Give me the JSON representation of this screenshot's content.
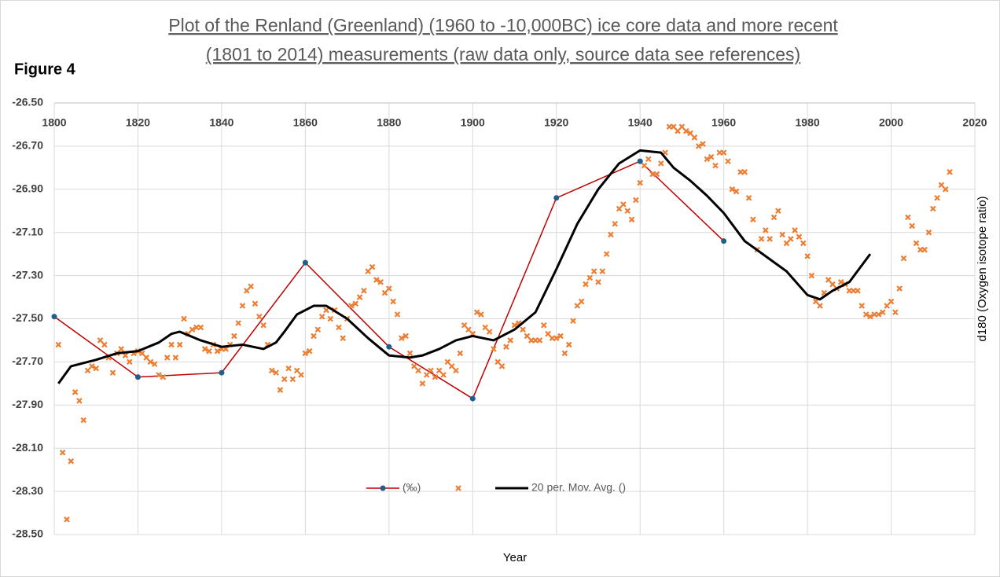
{
  "figure_label": "Figure 4",
  "chart_data": {
    "type": "line",
    "title": [
      "Plot of  the Renland (Greenland) (1960 to -10,000BC) ice core data and more recent",
      "(1801 to 2014) measurements  (raw data only, source data see references)"
    ],
    "xlabel": "Year",
    "ylabel": "d180 (Oxygen isotope ratio)",
    "xlim": [
      1800,
      2020
    ],
    "xticks": [
      1800,
      1820,
      1840,
      1860,
      1880,
      1900,
      1920,
      1940,
      1960,
      1980,
      2000,
      2020
    ],
    "ylim": [
      -28.5,
      -26.5
    ],
    "yticks": [
      {
        "value": -26.5,
        "label": "-26.50"
      },
      {
        "value": -26.7,
        "label": "-26.70"
      },
      {
        "value": -26.9,
        "label": "-26.90"
      },
      {
        "value": -27.1,
        "label": "-27.10"
      },
      {
        "value": -27.3,
        "label": "-27.30"
      },
      {
        "value": -27.5,
        "label": "-27.50"
      },
      {
        "value": -27.7,
        "label": "-27.70"
      },
      {
        "value": -27.9,
        "label": "-27.90"
      },
      {
        "value": -28.1,
        "label": "-28.10"
      },
      {
        "value": -28.3,
        "label": "-28.30"
      },
      {
        "value": -28.5,
        "label": "-28.50"
      }
    ],
    "grid": true,
    "legend": "bottom",
    "series": [
      {
        "name": "(‰)",
        "type": "line",
        "color": "#c00000",
        "marker_color": "#1f5f8b",
        "x": [
          1800,
          1820,
          1840,
          1860,
          1880,
          1900,
          1920,
          1940,
          1960
        ],
        "values": [
          -27.49,
          -27.77,
          -27.75,
          -27.24,
          -27.63,
          -27.87,
          -26.94,
          -26.77,
          -27.14
        ]
      },
      {
        "type": "scatter",
        "color": "#ed7d31",
        "x": [
          1801,
          1802,
          1803,
          1804,
          1805,
          1806,
          1807,
          1808,
          1809,
          1810,
          1811,
          1812,
          1813,
          1814,
          1815,
          1816,
          1817,
          1818,
          1819,
          1820,
          1821,
          1822,
          1823,
          1824,
          1825,
          1826,
          1827,
          1828,
          1829,
          1830,
          1831,
          1832,
          1833,
          1834,
          1835,
          1836,
          1837,
          1838,
          1839,
          1840,
          1841,
          1842,
          1843,
          1844,
          1845,
          1846,
          1847,
          1848,
          1849,
          1850,
          1851,
          1852,
          1853,
          1854,
          1855,
          1856,
          1857,
          1858,
          1859,
          1860,
          1861,
          1862,
          1863,
          1864,
          1865,
          1866,
          1867,
          1868,
          1869,
          1870,
          1871,
          1872,
          1873,
          1874,
          1875,
          1876,
          1877,
          1878,
          1879,
          1880,
          1881,
          1882,
          1883,
          1884,
          1885,
          1886,
          1887,
          1888,
          1889,
          1890,
          1891,
          1892,
          1893,
          1894,
          1895,
          1896,
          1897,
          1898,
          1899,
          1900,
          1901,
          1902,
          1903,
          1904,
          1905,
          1906,
          1907,
          1908,
          1909,
          1910,
          1911,
          1912,
          1913,
          1914,
          1915,
          1916,
          1917,
          1918,
          1919,
          1920,
          1921,
          1922,
          1923,
          1924,
          1925,
          1926,
          1927,
          1928,
          1929,
          1930,
          1931,
          1932,
          1933,
          1934,
          1935,
          1936,
          1937,
          1938,
          1939,
          1940,
          1941,
          1942,
          1943,
          1944,
          1945,
          1946,
          1947,
          1948,
          1949,
          1950,
          1951,
          1952,
          1953,
          1954,
          1955,
          1956,
          1957,
          1958,
          1959,
          1960,
          1961,
          1962,
          1963,
          1964,
          1965,
          1966,
          1967,
          1968,
          1969,
          1970,
          1971,
          1972,
          1973,
          1974,
          1975,
          1976,
          1977,
          1978,
          1979,
          1980,
          1981,
          1982,
          1983,
          1984,
          1985,
          1986,
          1987,
          1988,
          1989,
          1990,
          1991,
          1992,
          1993,
          1994,
          1995,
          1996,
          1997,
          1998,
          1999,
          2000,
          2001,
          2002,
          2003,
          2004,
          2005,
          2006,
          2007,
          2008,
          2009,
          2010,
          2011,
          2012,
          2013,
          2014
        ],
        "values": [
          -27.62,
          -28.12,
          -28.43,
          -28.16,
          -27.84,
          -27.88,
          -27.97,
          -27.74,
          -27.72,
          -27.73,
          -27.6,
          -27.62,
          -27.68,
          -27.75,
          -27.66,
          -27.64,
          -27.67,
          -27.7,
          -27.66,
          -27.65,
          -27.66,
          -27.68,
          -27.7,
          -27.71,
          -27.76,
          -27.77,
          -27.68,
          -27.62,
          -27.68,
          -27.62,
          -27.5,
          -27.57,
          -27.55,
          -27.54,
          -27.54,
          -27.64,
          -27.65,
          -27.62,
          -27.65,
          -27.64,
          -27.64,
          -27.62,
          -27.58,
          -27.52,
          -27.44,
          -27.37,
          -27.35,
          -27.43,
          -27.49,
          -27.53,
          -27.62,
          -27.74,
          -27.75,
          -27.83,
          -27.78,
          -27.73,
          -27.78,
          -27.74,
          -27.76,
          -27.66,
          -27.65,
          -27.58,
          -27.55,
          -27.49,
          -27.46,
          -27.5,
          -27.46,
          -27.54,
          -27.59,
          -27.5,
          -27.44,
          -27.43,
          -27.4,
          -27.37,
          -27.28,
          -27.26,
          -27.32,
          -27.33,
          -27.38,
          -27.36,
          -27.42,
          -27.48,
          -27.59,
          -27.58,
          -27.66,
          -27.72,
          -27.74,
          -27.8,
          -27.76,
          -27.74,
          -27.77,
          -27.74,
          -27.76,
          -27.7,
          -27.72,
          -27.74,
          -27.66,
          -27.53,
          -27.55,
          -27.57,
          -27.47,
          -27.48,
          -27.54,
          -27.56,
          -27.64,
          -27.7,
          -27.72,
          -27.63,
          -27.6,
          -27.53,
          -27.52,
          -27.55,
          -27.58,
          -27.6,
          -27.6,
          -27.6,
          -27.53,
          -27.57,
          -27.59,
          -27.59,
          -27.58,
          -27.66,
          -27.62,
          -27.51,
          -27.44,
          -27.42,
          -27.34,
          -27.31,
          -27.28,
          -27.33,
          -27.28,
          -27.2,
          -27.11,
          -27.06,
          -26.99,
          -26.97,
          -27.0,
          -27.04,
          -26.95,
          -26.87,
          -26.79,
          -26.76,
          -26.83,
          -26.83,
          -26.78,
          -26.73,
          -26.61,
          -26.61,
          -26.63,
          -26.61,
          -26.63,
          -26.64,
          -26.66,
          -26.7,
          -26.69,
          -26.76,
          -26.75,
          -26.79,
          -26.73,
          -26.73,
          -26.77,
          -26.9,
          -26.91,
          -26.82,
          -26.82,
          -26.94,
          -27.04,
          -27.18,
          -27.13,
          -27.09,
          -27.13,
          -27.03,
          -27.0,
          -27.11,
          -27.15,
          -27.13,
          -27.09,
          -27.12,
          -27.15,
          -27.21,
          -27.3,
          -27.42,
          -27.44,
          -27.38,
          -27.32,
          -27.34,
          -27.36,
          -27.33,
          -27.34,
          -27.37,
          -27.37,
          -27.37,
          -27.44,
          -27.48,
          -27.49,
          -27.48,
          -27.48,
          -27.47,
          -27.44,
          -27.42,
          -27.47,
          -27.36,
          -27.22,
          -27.03,
          -27.07,
          -27.15,
          -27.18,
          -27.18,
          -27.1,
          -26.99,
          -26.94,
          -26.88,
          -26.9,
          -26.82
        ]
      },
      {
        "name": "20 per. Mov. Avg. ()",
        "type": "line",
        "color": "#000000",
        "x": [
          1801,
          1804,
          1810,
          1815,
          1820,
          1825,
          1828,
          1830,
          1835,
          1840,
          1845,
          1850,
          1853,
          1855,
          1858,
          1862,
          1865,
          1870,
          1875,
          1880,
          1885,
          1888,
          1892,
          1896,
          1900,
          1905,
          1910,
          1915,
          1920,
          1925,
          1930,
          1935,
          1940,
          1945,
          1948,
          1952,
          1956,
          1960,
          1965,
          1970,
          1975,
          1980,
          1983,
          1986,
          1990,
          1995
        ],
        "values": [
          -27.8,
          -27.72,
          -27.69,
          -27.66,
          -27.65,
          -27.61,
          -27.57,
          -27.56,
          -27.6,
          -27.63,
          -27.62,
          -27.64,
          -27.61,
          -27.56,
          -27.48,
          -27.44,
          -27.44,
          -27.5,
          -27.59,
          -27.67,
          -27.68,
          -27.67,
          -27.64,
          -27.6,
          -27.58,
          -27.6,
          -27.55,
          -27.47,
          -27.27,
          -27.06,
          -26.9,
          -26.78,
          -26.72,
          -26.73,
          -26.8,
          -26.86,
          -26.93,
          -27.01,
          -27.14,
          -27.21,
          -27.28,
          -27.39,
          -27.41,
          -27.37,
          -27.33,
          -27.2
        ]
      }
    ]
  }
}
